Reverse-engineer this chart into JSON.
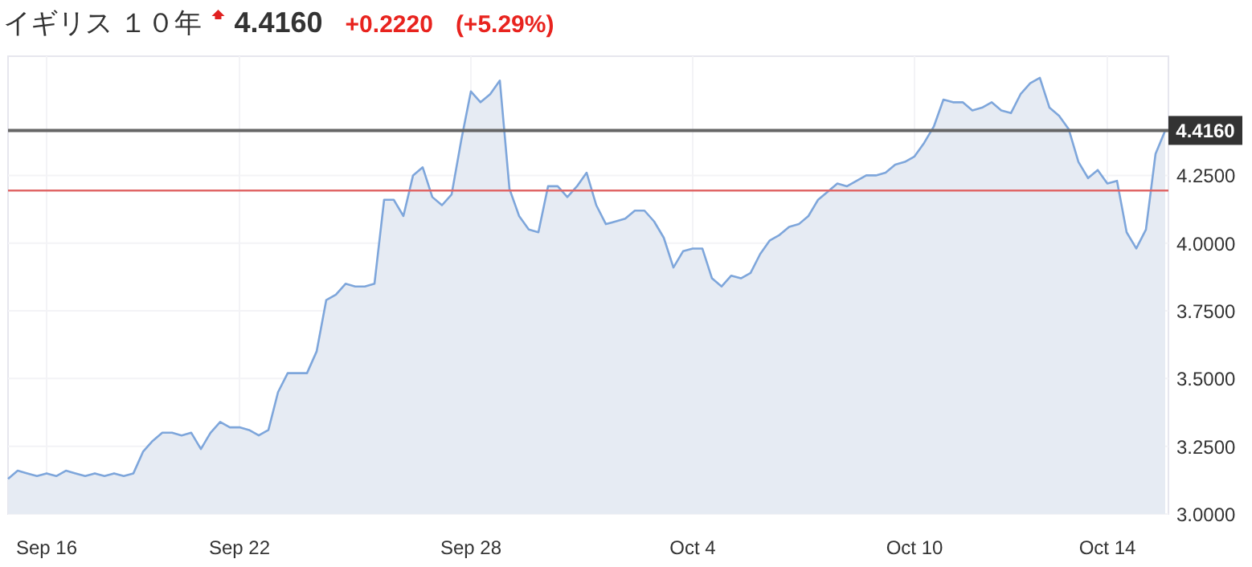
{
  "chart_data": {
    "type": "area",
    "title": "イギリス １０年",
    "annotations": [
      "4.4160",
      "+0.2220",
      "(+5.29%)"
    ],
    "categories": [
      null,
      null,
      null,
      null,
      "Sep 16",
      null,
      null,
      null,
      null,
      null,
      null,
      null,
      null,
      null,
      null,
      null,
      null,
      null,
      null,
      null,
      null,
      null,
      null,
      null,
      "Sep 22",
      null,
      null,
      null,
      null,
      null,
      null,
      null,
      null,
      null,
      null,
      null,
      null,
      null,
      null,
      null,
      null,
      null,
      null,
      null,
      null,
      null,
      null,
      null,
      "Sep 28",
      null,
      null,
      null,
      null,
      null,
      null,
      null,
      null,
      null,
      null,
      null,
      null,
      null,
      null,
      null,
      null,
      null,
      null,
      null,
      null,
      null,
      null,
      "Oct 4",
      null,
      null,
      null,
      null,
      null,
      null,
      null,
      null,
      null,
      null,
      null,
      null,
      null,
      null,
      null,
      null,
      null,
      null,
      null,
      null,
      null,
      null,
      "Oct 10",
      null,
      null,
      null,
      null,
      null,
      null,
      null,
      null,
      null,
      null,
      null,
      null,
      null,
      null,
      null,
      null,
      null,
      null,
      null,
      "Oct 14",
      null,
      null,
      null,
      null,
      null,
      null
    ],
    "series": [
      {
        "color": "#7ea6db",
        "values": [
          3.13,
          3.16,
          3.15,
          3.14,
          3.15,
          3.14,
          3.16,
          3.15,
          3.14,
          3.15,
          3.14,
          3.15,
          3.14,
          3.15,
          3.23,
          3.27,
          3.3,
          3.3,
          3.29,
          3.3,
          3.24,
          3.3,
          3.34,
          3.32,
          3.32,
          3.31,
          3.29,
          3.31,
          3.45,
          3.52,
          3.52,
          3.52,
          3.6,
          3.79,
          3.81,
          3.85,
          3.84,
          3.84,
          3.85,
          4.16,
          4.16,
          4.1,
          4.25,
          4.28,
          4.17,
          4.14,
          4.18,
          4.38,
          4.56,
          4.52,
          4.55,
          4.6,
          4.2,
          4.1,
          4.05,
          4.04,
          4.21,
          4.21,
          4.17,
          4.21,
          4.26,
          4.14,
          4.07,
          4.08,
          4.09,
          4.12,
          4.12,
          4.08,
          4.02,
          3.91,
          3.97,
          3.98,
          3.98,
          3.87,
          3.84,
          3.88,
          3.87,
          3.89,
          3.96,
          4.01,
          4.03,
          4.06,
          4.07,
          4.1,
          4.16,
          4.19,
          4.22,
          4.21,
          4.23,
          4.25,
          4.25,
          4.26,
          4.29,
          4.3,
          4.32,
          4.37,
          4.43,
          4.53,
          4.52,
          4.52,
          4.49,
          4.5,
          4.52,
          4.49,
          4.48,
          4.55,
          4.59,
          4.61,
          4.5,
          4.47,
          4.42,
          4.3,
          4.24,
          4.27,
          4.22,
          4.23,
          4.04,
          3.98,
          4.05,
          4.33,
          4.416
        ]
      }
    ],
    "ylim": [
      3.0,
      4.69
    ],
    "yticks": [
      {
        "value": 3.0,
        "label": "3.0000"
      },
      {
        "value": 3.25,
        "label": "3.2500"
      },
      {
        "value": 3.5,
        "label": "3.5000"
      },
      {
        "value": 3.75,
        "label": "3.7500"
      },
      {
        "value": 4.0,
        "label": "4.0000"
      },
      {
        "value": 4.25,
        "label": "4.2500"
      }
    ],
    "ref_lines": [
      {
        "axis": "y",
        "value": 4.416,
        "label": "4.4160",
        "color": "#666666"
      },
      {
        "axis": "y",
        "value": 4.194,
        "color": "#e06666"
      }
    ],
    "grid": true
  }
}
